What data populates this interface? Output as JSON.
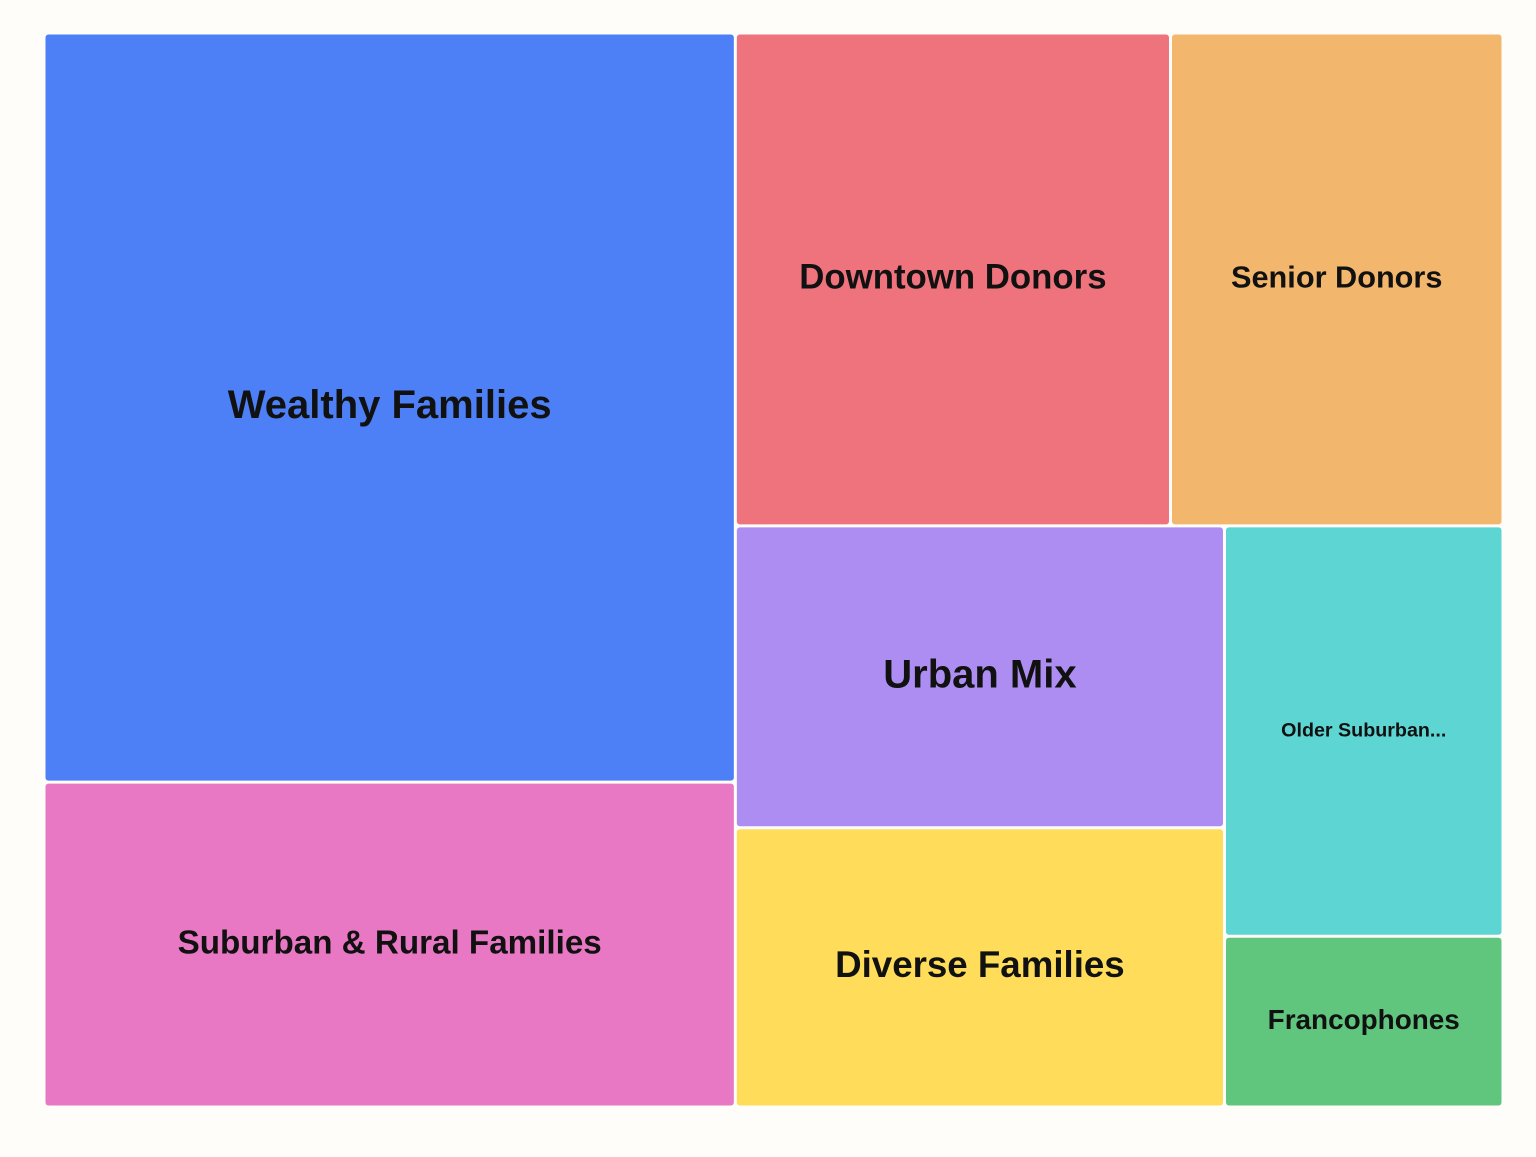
{
  "chart_data": {
    "type": "treemap",
    "categories": [
      "Wealthy Families",
      "Suburban & Rural Families",
      "Downtown Donors",
      "Senior Donors",
      "Urban Mix",
      "Diverse Families",
      "Older Suburban...",
      "Francophones"
    ],
    "values": [
      512,
      222,
      212,
      162,
      146,
      135,
      113,
      47
    ],
    "colors": [
      "#4d80f7",
      "#e878c3",
      "#ee737d",
      "#f2b76d",
      "#ae8df3",
      "#ffdd5a",
      "#5dd5d2",
      "#61c67d"
    ]
  }
}
